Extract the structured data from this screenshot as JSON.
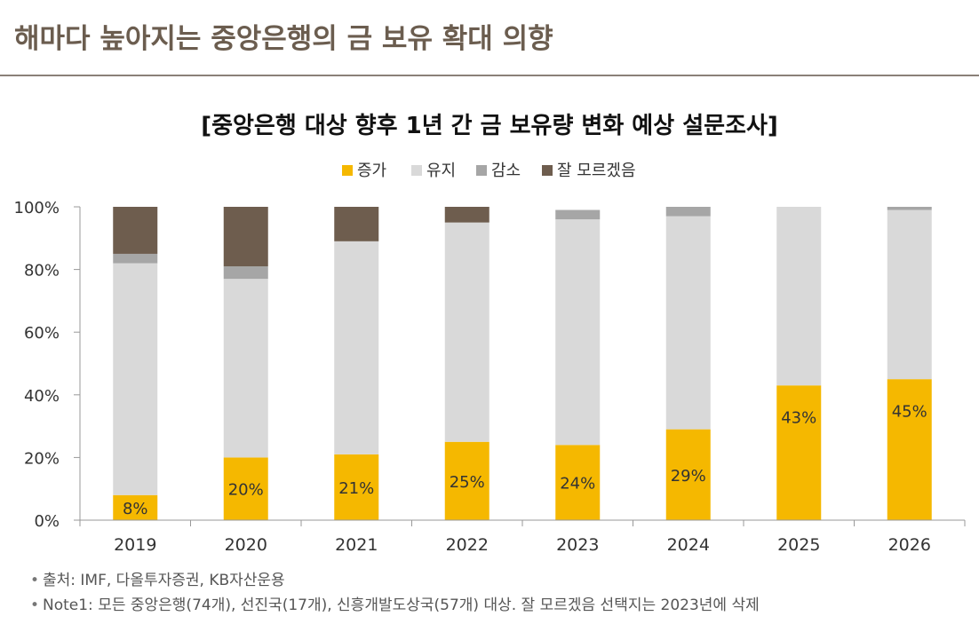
{
  "page": {
    "title": "해마다 높아지는 중앙은행의 금 보유 확대 의향"
  },
  "notes": [
    "출처: IMF, 다올투자증권, KB자산운용",
    "Note1: 모든 중앙은행(74개), 선진국(17개), 신흥개발도상국(57개) 대상. 잘 모르겠음 선택지는 2023년에 삭제"
  ],
  "colors": {
    "increase": "#f5b800",
    "maintain": "#d9d9d9",
    "decrease": "#a6a6a6",
    "unknown": "#6e5d4e"
  },
  "chart_data": {
    "type": "bar",
    "stacked": true,
    "title": "[중앙은행 대상 향후 1년 간 금 보유량 변화 예상 설문조사]",
    "xlabel": "",
    "ylabel": "",
    "ylim": [
      0,
      100
    ],
    "yticks": [
      "0%",
      "20%",
      "40%",
      "60%",
      "80%",
      "100%"
    ],
    "legend_position": "top-center",
    "categories": [
      "2019",
      "2020",
      "2021",
      "2022",
      "2023",
      "2024",
      "2025",
      "2026"
    ],
    "series": [
      {
        "name": "증가",
        "values": [
          8,
          20,
          21,
          25,
          24,
          29,
          43,
          45
        ],
        "labels": [
          "8%",
          "20%",
          "21%",
          "25%",
          "24%",
          "29%",
          "43%",
          "45%"
        ]
      },
      {
        "name": "유지",
        "values": [
          74,
          57,
          68,
          70,
          72,
          68,
          57,
          54
        ]
      },
      {
        "name": "감소",
        "values": [
          3,
          4,
          0,
          0,
          3,
          3,
          0,
          1
        ]
      },
      {
        "name": "잘 모르겠음",
        "values": [
          15,
          19,
          11,
          5,
          0,
          0,
          0,
          0
        ]
      }
    ]
  }
}
